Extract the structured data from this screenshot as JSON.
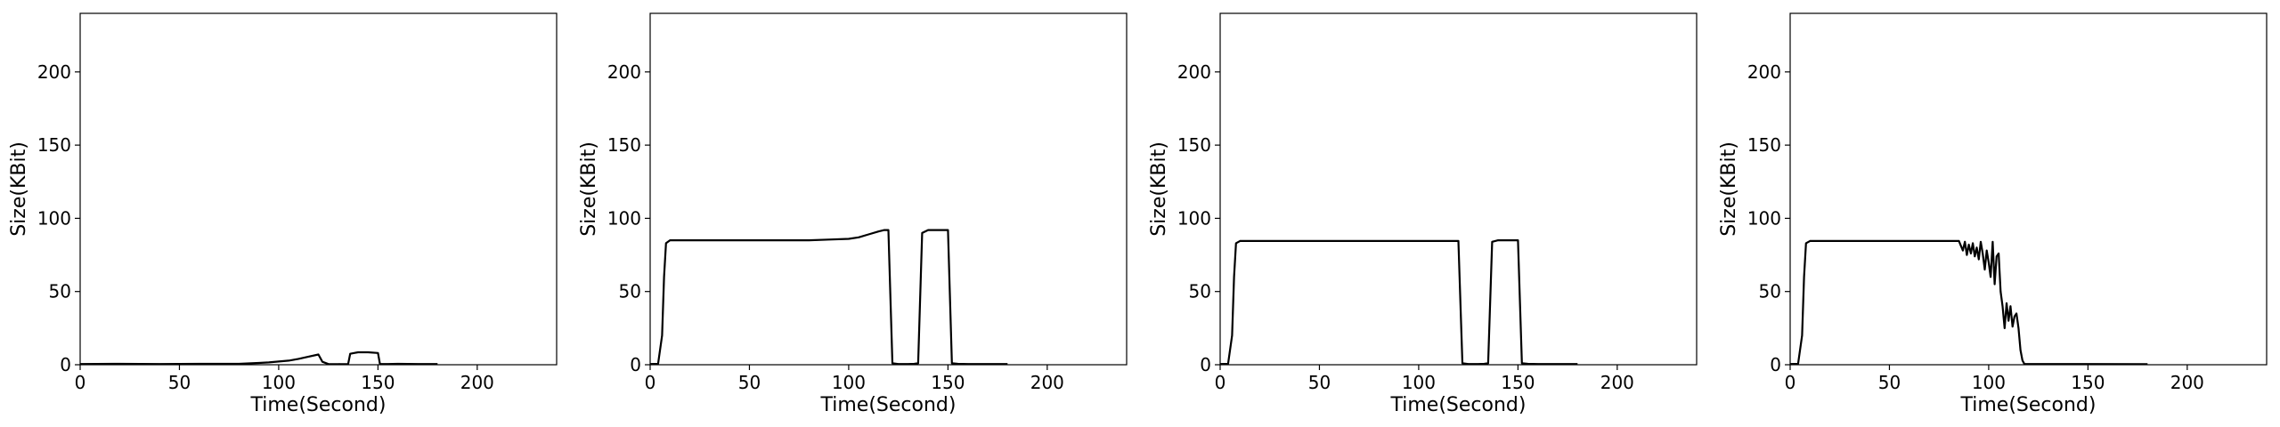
{
  "chart_data": [
    {
      "type": "line",
      "xlabel": "Time(Second)",
      "ylabel": "Size(KBit)",
      "xlim": [
        0,
        240
      ],
      "ylim": [
        0,
        240
      ],
      "xticks": [
        0,
        50,
        100,
        150,
        200
      ],
      "yticks": [
        0,
        50,
        100,
        150,
        200
      ],
      "grid": false,
      "series": [
        {
          "color": "#000000",
          "x": [
            0,
            20,
            40,
            60,
            80,
            90,
            95,
            100,
            105,
            110,
            115,
            120,
            122,
            125,
            130,
            135,
            136,
            138,
            140,
            145,
            150,
            151,
            155,
            160,
            170,
            180
          ],
          "y": [
            0.5,
            0.6,
            0.5,
            0.6,
            0.6,
            1.2,
            1.6,
            2.2,
            2.8,
            4.0,
            5.5,
            7.0,
            2.0,
            0.5,
            0.4,
            0.5,
            7.5,
            8.0,
            8.5,
            8.5,
            8.0,
            0.5,
            0.5,
            0.6,
            0.5,
            0.5
          ]
        }
      ]
    },
    {
      "type": "line",
      "xlabel": "Time(Second)",
      "ylabel": "Size(KBit)",
      "xlim": [
        0,
        240
      ],
      "ylim": [
        0,
        240
      ],
      "xticks": [
        0,
        50,
        100,
        150,
        200
      ],
      "yticks": [
        0,
        50,
        100,
        150,
        200
      ],
      "grid": false,
      "series": [
        {
          "color": "#000000",
          "x": [
            0,
            4,
            6,
            7,
            8,
            10,
            20,
            40,
            60,
            80,
            90,
            100,
            105,
            110,
            115,
            118,
            120,
            122,
            125,
            128,
            130,
            133,
            135,
            137,
            140,
            145,
            148,
            150,
            152,
            155,
            160,
            170,
            180
          ],
          "y": [
            0.5,
            0.6,
            20,
            60,
            83,
            85,
            85,
            85,
            85,
            85,
            85.5,
            86,
            87,
            89,
            91,
            92,
            92,
            1,
            0.5,
            0.5,
            0.5,
            0.6,
            1,
            90,
            92,
            92,
            92,
            92,
            1,
            0.6,
            0.5,
            0.5,
            0.5
          ]
        }
      ]
    },
    {
      "type": "line",
      "xlabel": "Time(Second)",
      "ylabel": "Size(KBit)",
      "xlim": [
        0,
        240
      ],
      "ylim": [
        0,
        240
      ],
      "xticks": [
        0,
        50,
        100,
        150,
        200
      ],
      "yticks": [
        0,
        50,
        100,
        150,
        200
      ],
      "grid": false,
      "series": [
        {
          "color": "#000000",
          "x": [
            0,
            4,
            6,
            7,
            8,
            10,
            20,
            40,
            60,
            80,
            100,
            110,
            118,
            120,
            122,
            125,
            128,
            130,
            133,
            135,
            137,
            140,
            145,
            148,
            150,
            152,
            155,
            160,
            170,
            180
          ],
          "y": [
            0.5,
            0.6,
            20,
            60,
            83,
            84.5,
            84.5,
            84.5,
            84.5,
            84.5,
            84.5,
            84.5,
            84.5,
            84.5,
            1,
            0.5,
            0.5,
            0.5,
            0.6,
            1,
            84,
            85,
            85,
            85,
            85,
            1,
            0.6,
            0.5,
            0.5,
            0.5
          ]
        }
      ]
    },
    {
      "type": "line",
      "xlabel": "Time(Second)",
      "ylabel": "Size(KBit)",
      "xlim": [
        0,
        240
      ],
      "ylim": [
        0,
        240
      ],
      "xticks": [
        0,
        50,
        100,
        150,
        200
      ],
      "yticks": [
        0,
        50,
        100,
        150,
        200
      ],
      "grid": false,
      "series": [
        {
          "color": "#000000",
          "x": [
            0,
            4,
            6,
            7,
            8,
            10,
            20,
            40,
            60,
            80,
            85,
            87,
            88,
            89,
            90,
            91,
            92,
            93,
            94,
            95,
            96,
            97,
            98,
            99,
            100,
            101,
            102,
            103,
            104,
            105,
            106,
            107,
            108,
            109,
            110,
            111,
            112,
            113,
            114,
            115,
            116,
            117,
            118,
            120,
            130,
            150,
            180
          ],
          "y": [
            0.5,
            0.6,
            20,
            60,
            83,
            84.5,
            84.5,
            84.5,
            84.5,
            84.5,
            84.5,
            78,
            84,
            75,
            82,
            76,
            83,
            74,
            80,
            72,
            84,
            76,
            65,
            78,
            70,
            60,
            84,
            55,
            74,
            76,
            50,
            40,
            25,
            42,
            30,
            40,
            26,
            33,
            35,
            25,
            10,
            3,
            0.5,
            0.5,
            0.5,
            0.5,
            0.4
          ]
        }
      ]
    }
  ]
}
